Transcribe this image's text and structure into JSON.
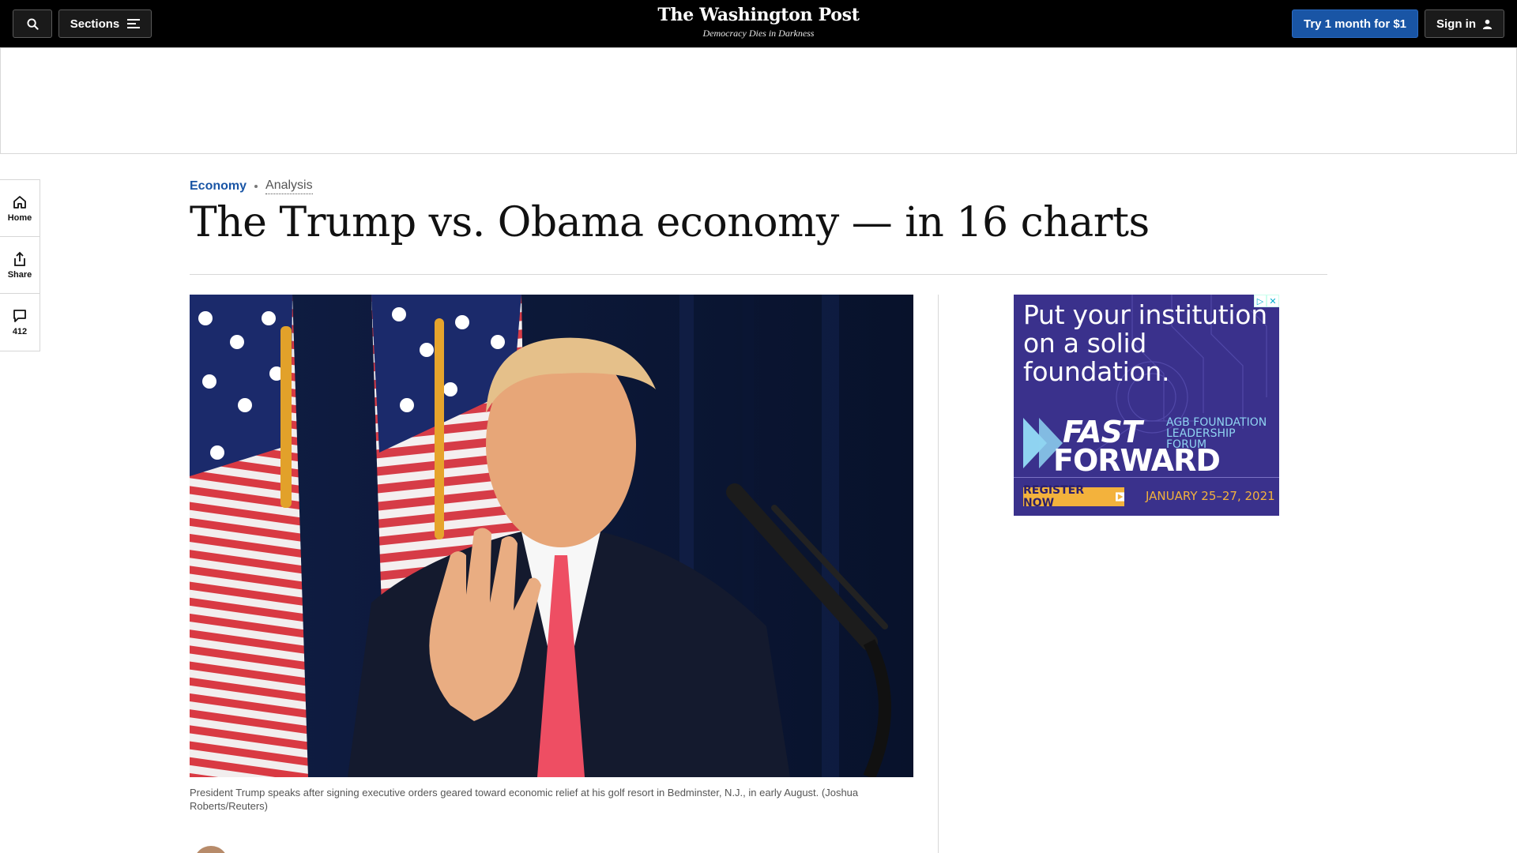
{
  "header": {
    "sections_label": "Sections",
    "logo_name": "The Washington Post",
    "tagline": "Democracy Dies in Darkness",
    "try_label": "Try 1 month for $1",
    "signin_label": "Sign in"
  },
  "rail": {
    "home_label": "Home",
    "share_label": "Share",
    "comments_count": "412"
  },
  "article": {
    "section": "Economy",
    "label": "Analysis",
    "headline": "The Trump vs. Obama economy — in 16 charts",
    "caption": "President Trump speaks after signing executive orders geared toward economic relief at his golf resort in Bedminster, N.J., in early August. (Joshua Roberts/Reuters)"
  },
  "side_ad": {
    "copy": "Put your institution on a solid foundation.",
    "brand_line1": "FAST",
    "brand_line2": "FORWARD",
    "subtitle_line1": "AGB FOUNDATION",
    "subtitle_line2": "LEADERSHIP FORUM",
    "cta": "REGISTER NOW",
    "dates": "JANUARY 25–27, 2021",
    "colors": {
      "background": "#3a318c",
      "accent": "#f3b23c",
      "cyan": "#8fd3f1"
    }
  },
  "icons": {
    "search": "search-icon",
    "sections": "menu-icon",
    "signin": "user-icon",
    "home": "home-icon",
    "share": "share-icon",
    "comments": "comment-icon"
  },
  "colors": {
    "topbar": "#000000",
    "brand_blue": "#1955a5"
  }
}
